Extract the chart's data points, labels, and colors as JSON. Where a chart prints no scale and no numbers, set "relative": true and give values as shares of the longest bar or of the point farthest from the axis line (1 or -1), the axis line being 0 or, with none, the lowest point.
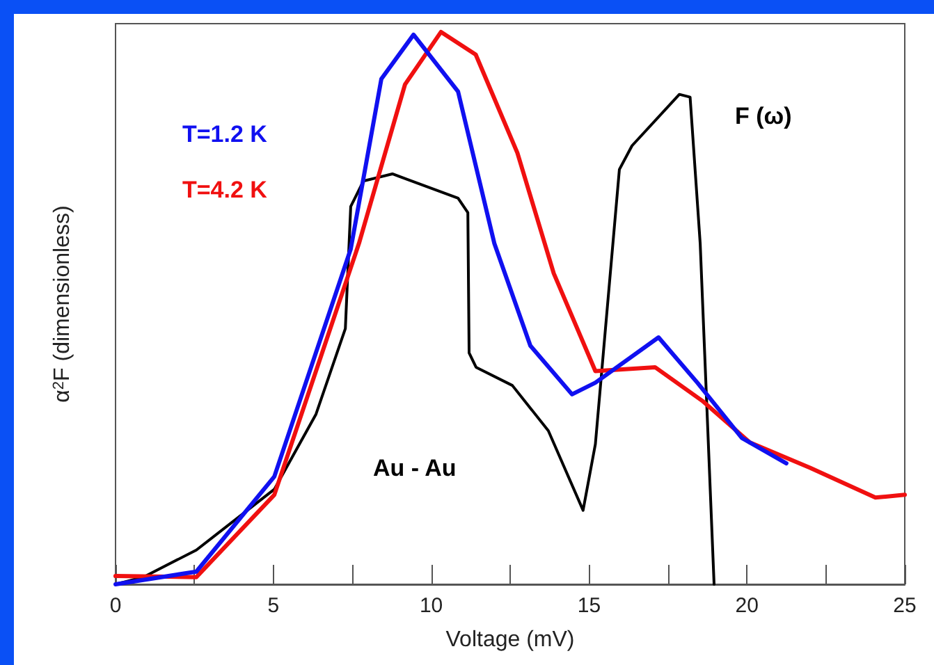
{
  "chart_data": {
    "type": "line",
    "relative": true,
    "xlabel": "Voltage (mV)",
    "ylabel": "α$^{2}$F (dimensionless)",
    "marker": "none",
    "line_style": "solid",
    "xlim": [
      0,
      25
    ],
    "xticks": [
      0,
      {
        "value": 2.5,
        "label": null
      },
      5,
      {
        "value": 7.5,
        "label": null
      },
      10,
      {
        "value": 12.5,
        "label": null
      },
      15,
      {
        "value": 17.5,
        "label": null
      },
      20,
      {
        "value": 22.5,
        "label": null
      },
      25
    ],
    "annotations": [
      "Au - Au"
    ],
    "series": [
      {
        "name": "T=1.2 K",
        "color": "#1010f0",
        "x": [
          0,
          2.56,
          5.03,
          7.45,
          8.42,
          9.44,
          10.85,
          12.0,
          13.14,
          14.46,
          15.2,
          17.2,
          18.43,
          19.84,
          21.25
        ],
        "values": [
          0,
          0.023,
          0.195,
          0.607,
          0.915,
          0.995,
          0.892,
          0.617,
          0.432,
          0.344,
          0.365,
          0.447,
          0.365,
          0.265,
          0.219
        ]
      },
      {
        "name": "T=4.2 K",
        "color": "#f01010",
        "x": [
          0,
          2.56,
          5.03,
          7.71,
          9.17,
          10.31,
          11.41,
          12.73,
          13.88,
          15.2,
          17.09,
          18.59,
          20.09,
          22.0,
          24.07,
          25
        ],
        "values": [
          0.015,
          0.013,
          0.162,
          0.617,
          0.905,
          1.0,
          0.959,
          0.781,
          0.563,
          0.386,
          0.393,
          0.332,
          0.257,
          0.211,
          0.157,
          0.162
        ]
      },
      {
        "name": "F (ω)",
        "color": "#000000",
        "x": [
          0,
          0.88,
          2.56,
          5.03,
          6.35,
          7.28,
          7.45,
          7.85,
          8.77,
          10.85,
          11.16,
          11.2,
          11.42,
          12.57,
          13.71,
          14.81,
          15.2,
          15.96,
          16.36,
          17.86,
          18.2,
          18.52,
          18.96
        ],
        "values": [
          0,
          0.013,
          0.062,
          0.172,
          0.308,
          0.463,
          0.684,
          0.73,
          0.743,
          0.699,
          0.673,
          0.419,
          0.393,
          0.36,
          0.278,
          0.134,
          0.254,
          0.751,
          0.794,
          0.887,
          0.882,
          0.617,
          0
        ]
      }
    ]
  }
}
